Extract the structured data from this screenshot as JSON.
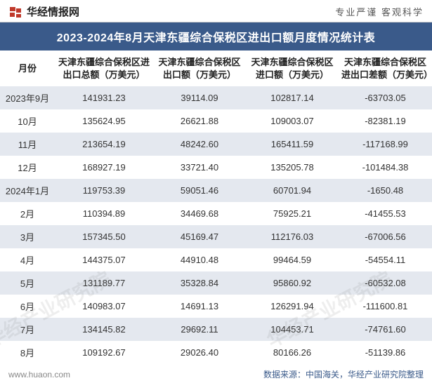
{
  "header": {
    "brand": "华经情报网",
    "tagline": "专业严谨    客观科学"
  },
  "title": "2023-2024年8月天津东疆综合保税区进出口额月度情况统计表",
  "table": {
    "columns": [
      "月份",
      "天津东疆综合保税区进出口总额（万美元）",
      "天津东疆综合保税区出口额（万美元）",
      "天津东疆综合保税区进口额（万美元）",
      "天津东疆综合保税区进出口差额（万美元）"
    ],
    "rows": [
      {
        "month": "2023年9月",
        "total": "141931.23",
        "export": "39114.09",
        "import": "102817.14",
        "diff": "-63703.05"
      },
      {
        "month": "10月",
        "total": "135624.95",
        "export": "26621.88",
        "import": "109003.07",
        "diff": "-82381.19"
      },
      {
        "month": "11月",
        "total": "213654.19",
        "export": "48242.60",
        "import": "165411.59",
        "diff": "-117168.99"
      },
      {
        "month": "12月",
        "total": "168927.19",
        "export": "33721.40",
        "import": "135205.78",
        "diff": "-101484.38"
      },
      {
        "month": "2024年1月",
        "total": "119753.39",
        "export": "59051.46",
        "import": "60701.94",
        "diff": "-1650.48"
      },
      {
        "month": "2月",
        "total": "110394.89",
        "export": "34469.68",
        "import": "75925.21",
        "diff": "-41455.53"
      },
      {
        "month": "3月",
        "total": "157345.50",
        "export": "45169.47",
        "import": "112176.03",
        "diff": "-67006.56"
      },
      {
        "month": "4月",
        "total": "144375.07",
        "export": "44910.48",
        "import": "99464.59",
        "diff": "-54554.11"
      },
      {
        "month": "5月",
        "total": "131189.77",
        "export": "35328.84",
        "import": "95860.92",
        "diff": "-60532.08"
      },
      {
        "month": "6月",
        "total": "140983.07",
        "export": "14691.13",
        "import": "126291.94",
        "diff": "-111600.81"
      },
      {
        "month": "7月",
        "total": "134145.82",
        "export": "29692.11",
        "import": "104453.71",
        "diff": "-74761.60"
      },
      {
        "month": "8月",
        "total": "109192.67",
        "export": "29026.40",
        "import": "80166.26",
        "diff": "-51139.86"
      }
    ]
  },
  "footer": {
    "site": "www.huaon.com",
    "source": "数据来源：中国海关，华经产业研究院整理"
  },
  "watermark": "华经产业研究院",
  "colors": {
    "title_bg": "#3a5a8a",
    "row_odd_bg": "#e4e8ef",
    "row_even_bg": "#ffffff",
    "negative": "#2aa06a",
    "text": "#333333",
    "footer_right": "#3a5a8a"
  }
}
